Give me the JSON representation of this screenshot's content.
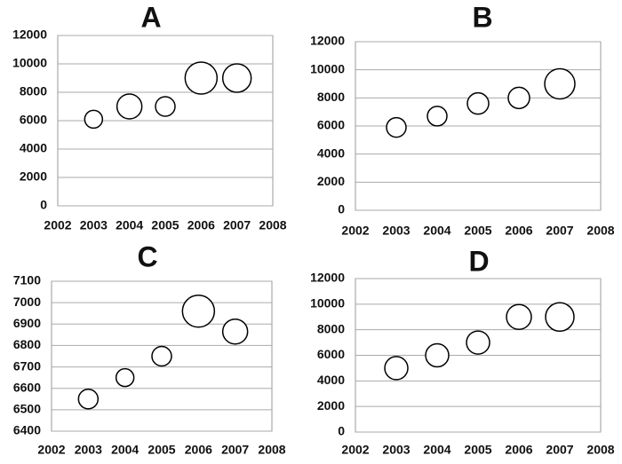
{
  "chart_data": [
    {
      "type": "bubble",
      "title": "A",
      "x": [
        2003,
        2004,
        2005,
        2006,
        2007
      ],
      "values": [
        6100,
        7000,
        7000,
        9000,
        9000
      ],
      "sizes": [
        10,
        14,
        11,
        18,
        16
      ],
      "xlim": [
        2002,
        2008
      ],
      "xticks": [
        2002,
        2003,
        2004,
        2005,
        2006,
        2007,
        2008
      ],
      "ylim": [
        0,
        12000
      ],
      "yticks": [
        0,
        2000,
        4000,
        6000,
        8000,
        10000,
        12000
      ],
      "grid": true,
      "color": "#ffffff"
    },
    {
      "type": "bubble",
      "title": "B",
      "x": [
        2003,
        2004,
        2005,
        2006,
        2007
      ],
      "values": [
        5900,
        6700,
        7600,
        8000,
        9000
      ],
      "sizes": [
        11,
        11,
        12,
        12,
        17
      ],
      "xlim": [
        2002,
        2008
      ],
      "xticks": [
        2002,
        2003,
        2004,
        2005,
        2006,
        2007,
        2008
      ],
      "ylim": [
        0,
        12000
      ],
      "yticks": [
        0,
        2000,
        4000,
        6000,
        8000,
        10000,
        12000
      ],
      "grid": true,
      "color": "#ffffff"
    },
    {
      "type": "bubble",
      "title": "C",
      "x": [
        2003,
        2004,
        2005,
        2006,
        2007
      ],
      "values": [
        6550,
        6650,
        6750,
        6960,
        6865
      ],
      "sizes": [
        11,
        10,
        11,
        18,
        14
      ],
      "xlim": [
        2002,
        2008
      ],
      "xticks": [
        2002,
        2003,
        2004,
        2005,
        2006,
        2007,
        2008
      ],
      "ylim": [
        6400,
        7100
      ],
      "yticks": [
        6400,
        6500,
        6600,
        6700,
        6800,
        6900,
        7000,
        7100
      ],
      "grid": true,
      "color": "#ffffff"
    },
    {
      "type": "bubble",
      "title": "D",
      "x": [
        2003,
        2004,
        2005,
        2006,
        2007
      ],
      "values": [
        5000,
        6000,
        7000,
        9000,
        9000
      ],
      "sizes": [
        13,
        13,
        13,
        14,
        16
      ],
      "xlim": [
        2002,
        2008
      ],
      "xticks": [
        2002,
        2003,
        2004,
        2005,
        2006,
        2007,
        2008
      ],
      "ylim": [
        0,
        12000
      ],
      "yticks": [
        0,
        2000,
        4000,
        6000,
        8000,
        10000,
        12000
      ],
      "grid": true,
      "color": "#ffffff"
    }
  ]
}
